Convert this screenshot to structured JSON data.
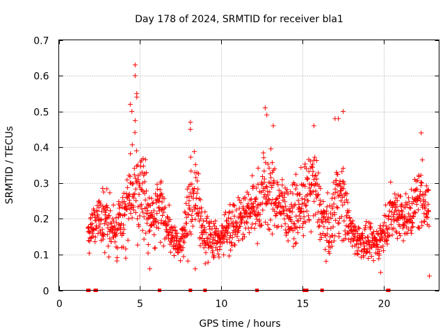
{
  "chart_data": {
    "type": "scatter",
    "title": "Day 178 of 2024, SRMTID for receiver bla1",
    "xlabel": "GPS time / hours",
    "ylabel": "SRMTID / TECUs",
    "xlim": [
      0,
      23.4
    ],
    "ylim": [
      0,
      0.7
    ],
    "xticks": [
      0,
      5,
      10,
      15,
      20
    ],
    "yticks": [
      0,
      0.1,
      0.2,
      0.3,
      0.4,
      0.5,
      0.6,
      0.7
    ],
    "xtick_labels": [
      "0",
      "5",
      "10",
      "15",
      "20"
    ],
    "ytick_labels": [
      "0",
      "0.1",
      "0.2",
      "0.3",
      "0.4",
      "0.5",
      "0.6",
      "0.7"
    ],
    "grid": true,
    "marker": "+",
    "color": "#ff0000",
    "envelope": {
      "description": "approximate smoothed median and spread of the dense scatter (hours, TECU)",
      "x": [
        1.8,
        2.5,
        3.0,
        3.5,
        4.0,
        4.5,
        4.8,
        5.2,
        5.7,
        6.2,
        6.6,
        7.0,
        7.5,
        8.0,
        8.3,
        8.8,
        9.3,
        9.8,
        10.3,
        10.8,
        11.3,
        11.8,
        12.3,
        12.6,
        13.0,
        13.5,
        14.0,
        14.5,
        15.0,
        15.3,
        15.7,
        16.2,
        16.7,
        17.1,
        17.5,
        18.0,
        18.5,
        19.0,
        19.5,
        20.0,
        20.5,
        21.0,
        21.5,
        22.0,
        22.5,
        22.8
      ],
      "median": [
        0.16,
        0.2,
        0.19,
        0.16,
        0.22,
        0.26,
        0.3,
        0.27,
        0.19,
        0.24,
        0.2,
        0.14,
        0.13,
        0.22,
        0.28,
        0.18,
        0.14,
        0.14,
        0.17,
        0.19,
        0.21,
        0.22,
        0.24,
        0.28,
        0.27,
        0.25,
        0.22,
        0.21,
        0.24,
        0.26,
        0.3,
        0.2,
        0.16,
        0.28,
        0.25,
        0.16,
        0.14,
        0.13,
        0.13,
        0.16,
        0.22,
        0.22,
        0.2,
        0.25,
        0.27,
        0.2
      ],
      "spread": [
        0.05,
        0.07,
        0.07,
        0.06,
        0.09,
        0.12,
        0.14,
        0.1,
        0.07,
        0.07,
        0.06,
        0.04,
        0.04,
        0.09,
        0.1,
        0.07,
        0.05,
        0.05,
        0.06,
        0.06,
        0.06,
        0.07,
        0.08,
        0.1,
        0.1,
        0.08,
        0.07,
        0.07,
        0.08,
        0.1,
        0.1,
        0.07,
        0.06,
        0.11,
        0.09,
        0.05,
        0.04,
        0.04,
        0.04,
        0.05,
        0.07,
        0.07,
        0.06,
        0.08,
        0.09,
        0.06
      ]
    },
    "n_points": 1500,
    "notable_points": [
      {
        "x": 4.7,
        "y": 0.63
      },
      {
        "x": 4.7,
        "y": 0.6
      },
      {
        "x": 4.8,
        "y": 0.55
      },
      {
        "x": 4.8,
        "y": 0.54
      },
      {
        "x": 4.4,
        "y": 0.52
      },
      {
        "x": 4.5,
        "y": 0.5
      },
      {
        "x": 8.1,
        "y": 0.47
      },
      {
        "x": 8.1,
        "y": 0.45
      },
      {
        "x": 12.7,
        "y": 0.51
      },
      {
        "x": 12.8,
        "y": 0.49
      },
      {
        "x": 13.2,
        "y": 0.46
      },
      {
        "x": 15.7,
        "y": 0.46
      },
      {
        "x": 17.0,
        "y": 0.48
      },
      {
        "x": 17.2,
        "y": 0.48
      },
      {
        "x": 17.5,
        "y": 0.5
      },
      {
        "x": 22.3,
        "y": 0.44
      },
      {
        "x": 5.6,
        "y": 0.06
      },
      {
        "x": 8.4,
        "y": 0.06
      },
      {
        "x": 19.8,
        "y": 0.05
      },
      {
        "x": 22.8,
        "y": 0.04
      }
    ],
    "zero_points_x": [
      1.8,
      1.85,
      2.25,
      2.3,
      6.2,
      8.1,
      9.0,
      12.2,
      15.1,
      15.15,
      15.2,
      15.25,
      16.2,
      20.25,
      20.3
    ]
  }
}
